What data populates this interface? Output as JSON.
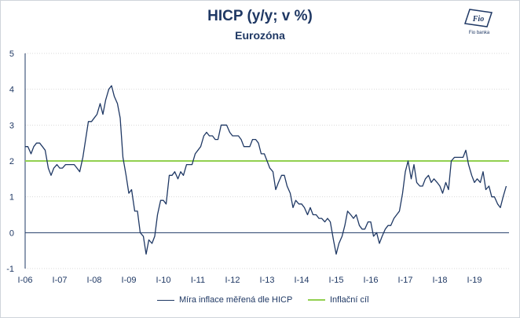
{
  "chart_data": {
    "type": "line",
    "title": "HICP (y/y; v %)",
    "subtitle": "Eurozóna",
    "ylim": [
      -1,
      5
    ],
    "yticks": [
      "5",
      "4",
      "3",
      "2",
      "1",
      "0",
      "-1"
    ],
    "xlim": [
      2006.0,
      2020.0
    ],
    "xticks": [
      "I-06",
      "I-07",
      "I-08",
      "I-09",
      "I-10",
      "I-11",
      "I-12",
      "I-13",
      "I-14",
      "I-15",
      "I-16",
      "I-17",
      "I-18",
      "I-19"
    ],
    "grid": "horizontal",
    "legend": "bottom",
    "series": [
      {
        "name": "Míra inflace měřená dle HICP",
        "color": "#1f3864",
        "points": [
          [
            2006.0,
            2.4
          ],
          [
            2006.08,
            2.4
          ],
          [
            2006.17,
            2.2
          ],
          [
            2006.25,
            2.4
          ],
          [
            2006.33,
            2.5
          ],
          [
            2006.42,
            2.5
          ],
          [
            2006.5,
            2.4
          ],
          [
            2006.58,
            2.3
          ],
          [
            2006.67,
            1.8
          ],
          [
            2006.75,
            1.6
          ],
          [
            2006.83,
            1.8
          ],
          [
            2006.92,
            1.9
          ],
          [
            2007.0,
            1.8
          ],
          [
            2007.08,
            1.8
          ],
          [
            2007.17,
            1.9
          ],
          [
            2007.25,
            1.9
          ],
          [
            2007.33,
            1.9
          ],
          [
            2007.42,
            1.9
          ],
          [
            2007.5,
            1.8
          ],
          [
            2007.58,
            1.7
          ],
          [
            2007.67,
            2.1
          ],
          [
            2007.75,
            2.6
          ],
          [
            2007.83,
            3.1
          ],
          [
            2007.92,
            3.1
          ],
          [
            2008.0,
            3.2
          ],
          [
            2008.08,
            3.3
          ],
          [
            2008.17,
            3.6
          ],
          [
            2008.25,
            3.3
          ],
          [
            2008.33,
            3.7
          ],
          [
            2008.42,
            4.0
          ],
          [
            2008.5,
            4.1
          ],
          [
            2008.58,
            3.8
          ],
          [
            2008.67,
            3.6
          ],
          [
            2008.75,
            3.2
          ],
          [
            2008.83,
            2.1
          ],
          [
            2008.92,
            1.6
          ],
          [
            2009.0,
            1.1
          ],
          [
            2009.08,
            1.2
          ],
          [
            2009.17,
            0.6
          ],
          [
            2009.25,
            0.6
          ],
          [
            2009.33,
            0.0
          ],
          [
            2009.42,
            -0.1
          ],
          [
            2009.5,
            -0.6
          ],
          [
            2009.58,
            -0.2
          ],
          [
            2009.67,
            -0.3
          ],
          [
            2009.75,
            -0.1
          ],
          [
            2009.83,
            0.5
          ],
          [
            2009.92,
            0.9
          ],
          [
            2010.0,
            0.9
          ],
          [
            2010.08,
            0.8
          ],
          [
            2010.17,
            1.6
          ],
          [
            2010.25,
            1.6
          ],
          [
            2010.33,
            1.7
          ],
          [
            2010.42,
            1.5
          ],
          [
            2010.5,
            1.7
          ],
          [
            2010.58,
            1.6
          ],
          [
            2010.67,
            1.9
          ],
          [
            2010.75,
            1.9
          ],
          [
            2010.83,
            1.9
          ],
          [
            2010.92,
            2.2
          ],
          [
            2011.0,
            2.3
          ],
          [
            2011.08,
            2.4
          ],
          [
            2011.17,
            2.7
          ],
          [
            2011.25,
            2.8
          ],
          [
            2011.33,
            2.7
          ],
          [
            2011.42,
            2.7
          ],
          [
            2011.5,
            2.6
          ],
          [
            2011.58,
            2.6
          ],
          [
            2011.67,
            3.0
          ],
          [
            2011.75,
            3.0
          ],
          [
            2011.83,
            3.0
          ],
          [
            2011.92,
            2.8
          ],
          [
            2012.0,
            2.7
          ],
          [
            2012.08,
            2.7
          ],
          [
            2012.17,
            2.7
          ],
          [
            2012.25,
            2.6
          ],
          [
            2012.33,
            2.4
          ],
          [
            2012.42,
            2.4
          ],
          [
            2012.5,
            2.4
          ],
          [
            2012.58,
            2.6
          ],
          [
            2012.67,
            2.6
          ],
          [
            2012.75,
            2.5
          ],
          [
            2012.83,
            2.2
          ],
          [
            2012.92,
            2.2
          ],
          [
            2013.0,
            2.0
          ],
          [
            2013.08,
            1.8
          ],
          [
            2013.17,
            1.7
          ],
          [
            2013.25,
            1.2
          ],
          [
            2013.33,
            1.4
          ],
          [
            2013.42,
            1.6
          ],
          [
            2013.5,
            1.6
          ],
          [
            2013.58,
            1.3
          ],
          [
            2013.67,
            1.1
          ],
          [
            2013.75,
            0.7
          ],
          [
            2013.83,
            0.9
          ],
          [
            2013.92,
            0.8
          ],
          [
            2014.0,
            0.8
          ],
          [
            2014.08,
            0.7
          ],
          [
            2014.17,
            0.5
          ],
          [
            2014.25,
            0.7
          ],
          [
            2014.33,
            0.5
          ],
          [
            2014.42,
            0.5
          ],
          [
            2014.5,
            0.4
          ],
          [
            2014.58,
            0.4
          ],
          [
            2014.67,
            0.3
          ],
          [
            2014.75,
            0.4
          ],
          [
            2014.83,
            0.3
          ],
          [
            2014.92,
            -0.2
          ],
          [
            2015.0,
            -0.6
          ],
          [
            2015.08,
            -0.3
          ],
          [
            2015.17,
            -0.1
          ],
          [
            2015.25,
            0.2
          ],
          [
            2015.33,
            0.6
          ],
          [
            2015.42,
            0.5
          ],
          [
            2015.5,
            0.4
          ],
          [
            2015.58,
            0.5
          ],
          [
            2015.67,
            0.2
          ],
          [
            2015.75,
            0.1
          ],
          [
            2015.83,
            0.1
          ],
          [
            2015.92,
            0.3
          ],
          [
            2016.0,
            0.3
          ],
          [
            2016.08,
            -0.1
          ],
          [
            2016.17,
            0.0
          ],
          [
            2016.25,
            -0.3
          ],
          [
            2016.33,
            -0.1
          ],
          [
            2016.42,
            0.1
          ],
          [
            2016.5,
            0.2
          ],
          [
            2016.58,
            0.2
          ],
          [
            2016.67,
            0.4
          ],
          [
            2016.75,
            0.5
          ],
          [
            2016.83,
            0.6
          ],
          [
            2016.92,
            1.1
          ],
          [
            2017.0,
            1.7
          ],
          [
            2017.08,
            2.0
          ],
          [
            2017.17,
            1.5
          ],
          [
            2017.25,
            1.9
          ],
          [
            2017.33,
            1.4
          ],
          [
            2017.42,
            1.3
          ],
          [
            2017.5,
            1.3
          ],
          [
            2017.58,
            1.5
          ],
          [
            2017.67,
            1.6
          ],
          [
            2017.75,
            1.4
          ],
          [
            2017.83,
            1.5
          ],
          [
            2017.92,
            1.4
          ],
          [
            2018.0,
            1.3
          ],
          [
            2018.08,
            1.1
          ],
          [
            2018.17,
            1.4
          ],
          [
            2018.25,
            1.2
          ],
          [
            2018.33,
            2.0
          ],
          [
            2018.42,
            2.1
          ],
          [
            2018.5,
            2.1
          ],
          [
            2018.58,
            2.1
          ],
          [
            2018.67,
            2.1
          ],
          [
            2018.75,
            2.3
          ],
          [
            2018.83,
            1.9
          ],
          [
            2018.92,
            1.6
          ],
          [
            2019.0,
            1.4
          ],
          [
            2019.08,
            1.5
          ],
          [
            2019.17,
            1.4
          ],
          [
            2019.25,
            1.7
          ],
          [
            2019.33,
            1.2
          ],
          [
            2019.42,
            1.3
          ],
          [
            2019.5,
            1.0
          ],
          [
            2019.58,
            1.0
          ],
          [
            2019.67,
            0.8
          ],
          [
            2019.75,
            0.7
          ],
          [
            2019.83,
            1.0
          ],
          [
            2019.92,
            1.3
          ]
        ]
      },
      {
        "name": "Inflační cíl",
        "color": "#92d050",
        "points": [
          [
            2006.0,
            2.0
          ],
          [
            2020.0,
            2.0
          ]
        ]
      }
    ]
  },
  "logo": {
    "text": "Fio banka",
    "glyph": "Fio",
    "color": "#1f3864"
  }
}
